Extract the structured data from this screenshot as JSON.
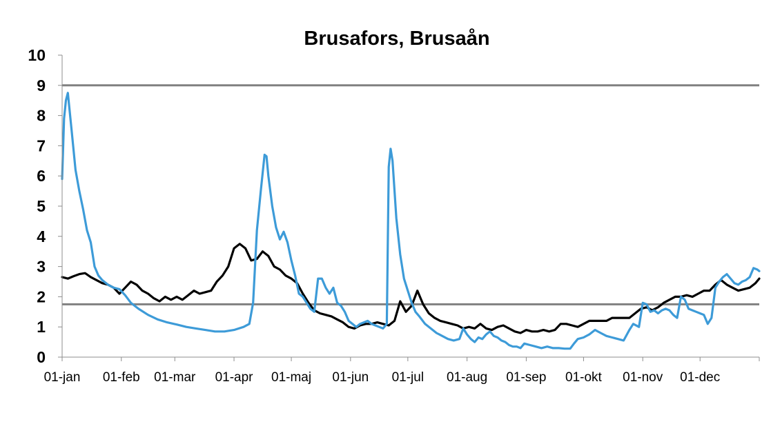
{
  "chart_data": {
    "type": "line",
    "title": "Brusafors, Brusaån",
    "xlabel": "",
    "ylabel": "",
    "ylim": [
      0,
      10
    ],
    "yticks": [
      "0",
      "1",
      "2",
      "3",
      "4",
      "5",
      "6",
      "7",
      "8",
      "9",
      "10"
    ],
    "xticks": [
      {
        "label": "01-jan",
        "day": 0
      },
      {
        "label": "01-feb",
        "day": 31
      },
      {
        "label": "01-mar",
        "day": 59
      },
      {
        "label": "01-apr",
        "day": 90
      },
      {
        "label": "01-maj",
        "day": 120
      },
      {
        "label": "01-jun",
        "day": 151
      },
      {
        "label": "01-jul",
        "day": 181
      },
      {
        "label": "01-aug",
        "day": 212
      },
      {
        "label": "01-sep",
        "day": 243
      },
      {
        "label": "01-okt",
        "day": 273
      },
      {
        "label": "01-nov",
        "day": 304
      },
      {
        "label": "01-dec",
        "day": 334
      }
    ],
    "x_range_days": [
      0,
      365
    ],
    "reference_lines": [
      9.0,
      1.75
    ],
    "grid": false,
    "legend": "none",
    "colors": {
      "black_series": "#000000",
      "blue_series": "#3d9bd8",
      "reference": "#808080"
    },
    "series": [
      {
        "color": "#000000",
        "points": [
          [
            0,
            2.65
          ],
          [
            3,
            2.6
          ],
          [
            6,
            2.68
          ],
          [
            9,
            2.75
          ],
          [
            12,
            2.78
          ],
          [
            15,
            2.65
          ],
          [
            18,
            2.55
          ],
          [
            21,
            2.45
          ],
          [
            24,
            2.4
          ],
          [
            27,
            2.3
          ],
          [
            30,
            2.1
          ],
          [
            33,
            2.3
          ],
          [
            36,
            2.5
          ],
          [
            39,
            2.4
          ],
          [
            42,
            2.2
          ],
          [
            45,
            2.1
          ],
          [
            48,
            1.95
          ],
          [
            51,
            1.85
          ],
          [
            54,
            2.0
          ],
          [
            57,
            1.9
          ],
          [
            60,
            2.0
          ],
          [
            63,
            1.9
          ],
          [
            66,
            2.05
          ],
          [
            69,
            2.2
          ],
          [
            72,
            2.1
          ],
          [
            75,
            2.15
          ],
          [
            78,
            2.2
          ],
          [
            81,
            2.5
          ],
          [
            84,
            2.7
          ],
          [
            87,
            3.0
          ],
          [
            90,
            3.6
          ],
          [
            93,
            3.75
          ],
          [
            96,
            3.6
          ],
          [
            99,
            3.2
          ],
          [
            102,
            3.25
          ],
          [
            105,
            3.5
          ],
          [
            108,
            3.35
          ],
          [
            111,
            3.0
          ],
          [
            114,
            2.9
          ],
          [
            117,
            2.7
          ],
          [
            120,
            2.6
          ],
          [
            123,
            2.45
          ],
          [
            126,
            2.1
          ],
          [
            129,
            1.8
          ],
          [
            132,
            1.55
          ],
          [
            135,
            1.45
          ],
          [
            138,
            1.4
          ],
          [
            141,
            1.35
          ],
          [
            144,
            1.25
          ],
          [
            147,
            1.15
          ],
          [
            150,
            1.0
          ],
          [
            153,
            0.95
          ],
          [
            156,
            1.05
          ],
          [
            159,
            1.1
          ],
          [
            162,
            1.1
          ],
          [
            165,
            1.15
          ],
          [
            168,
            1.1
          ],
          [
            171,
            1.05
          ],
          [
            174,
            1.2
          ],
          [
            177,
            1.85
          ],
          [
            180,
            1.5
          ],
          [
            183,
            1.7
          ],
          [
            186,
            2.2
          ],
          [
            189,
            1.75
          ],
          [
            192,
            1.45
          ],
          [
            195,
            1.3
          ],
          [
            198,
            1.2
          ],
          [
            201,
            1.15
          ],
          [
            204,
            1.1
          ],
          [
            207,
            1.05
          ],
          [
            210,
            0.95
          ],
          [
            213,
            1.0
          ],
          [
            216,
            0.95
          ],
          [
            219,
            1.1
          ],
          [
            222,
            0.95
          ],
          [
            225,
            0.9
          ],
          [
            228,
            1.0
          ],
          [
            231,
            1.05
          ],
          [
            234,
            0.95
          ],
          [
            237,
            0.85
          ],
          [
            240,
            0.8
          ],
          [
            243,
            0.9
          ],
          [
            246,
            0.85
          ],
          [
            249,
            0.85
          ],
          [
            252,
            0.9
          ],
          [
            255,
            0.85
          ],
          [
            258,
            0.9
          ],
          [
            261,
            1.1
          ],
          [
            264,
            1.1
          ],
          [
            267,
            1.05
          ],
          [
            270,
            1.0
          ],
          [
            273,
            1.1
          ],
          [
            276,
            1.2
          ],
          [
            279,
            1.2
          ],
          [
            282,
            1.2
          ],
          [
            285,
            1.2
          ],
          [
            288,
            1.3
          ],
          [
            291,
            1.3
          ],
          [
            294,
            1.3
          ],
          [
            297,
            1.3
          ],
          [
            300,
            1.45
          ],
          [
            303,
            1.6
          ],
          [
            306,
            1.65
          ],
          [
            309,
            1.55
          ],
          [
            312,
            1.65
          ],
          [
            315,
            1.8
          ],
          [
            318,
            1.9
          ],
          [
            321,
            2.0
          ],
          [
            324,
            2.0
          ],
          [
            327,
            2.05
          ],
          [
            330,
            2.0
          ],
          [
            333,
            2.1
          ],
          [
            336,
            2.2
          ],
          [
            339,
            2.2
          ],
          [
            342,
            2.4
          ],
          [
            345,
            2.55
          ],
          [
            348,
            2.4
          ],
          [
            351,
            2.3
          ],
          [
            354,
            2.2
          ],
          [
            357,
            2.25
          ],
          [
            360,
            2.3
          ],
          [
            363,
            2.45
          ],
          [
            365,
            2.6
          ]
        ]
      },
      {
        "color": "#3d9bd8",
        "points": [
          [
            0,
            5.9
          ],
          [
            1,
            7.9
          ],
          [
            2,
            8.5
          ],
          [
            3,
            8.75
          ],
          [
            5,
            7.5
          ],
          [
            7,
            6.2
          ],
          [
            9,
            5.5
          ],
          [
            11,
            4.9
          ],
          [
            13,
            4.2
          ],
          [
            15,
            3.8
          ],
          [
            17,
            3.0
          ],
          [
            19,
            2.7
          ],
          [
            21,
            2.55
          ],
          [
            24,
            2.4
          ],
          [
            27,
            2.3
          ],
          [
            30,
            2.25
          ],
          [
            33,
            2.05
          ],
          [
            36,
            1.8
          ],
          [
            40,
            1.6
          ],
          [
            45,
            1.4
          ],
          [
            50,
            1.25
          ],
          [
            55,
            1.15
          ],
          [
            60,
            1.08
          ],
          [
            65,
            1.0
          ],
          [
            70,
            0.95
          ],
          [
            75,
            0.9
          ],
          [
            80,
            0.85
          ],
          [
            85,
            0.85
          ],
          [
            90,
            0.9
          ],
          [
            95,
            1.0
          ],
          [
            98,
            1.1
          ],
          [
            100,
            1.8
          ],
          [
            102,
            4.2
          ],
          [
            104,
            5.5
          ],
          [
            106,
            6.7
          ],
          [
            107,
            6.65
          ],
          [
            108,
            6.0
          ],
          [
            110,
            5.0
          ],
          [
            112,
            4.3
          ],
          [
            114,
            3.9
          ],
          [
            116,
            4.15
          ],
          [
            118,
            3.8
          ],
          [
            120,
            3.2
          ],
          [
            122,
            2.7
          ],
          [
            124,
            2.1
          ],
          [
            126,
            2.0
          ],
          [
            128,
            1.8
          ],
          [
            130,
            1.6
          ],
          [
            132,
            1.5
          ],
          [
            134,
            2.6
          ],
          [
            136,
            2.6
          ],
          [
            138,
            2.3
          ],
          [
            140,
            2.1
          ],
          [
            142,
            2.3
          ],
          [
            144,
            1.8
          ],
          [
            146,
            1.7
          ],
          [
            148,
            1.5
          ],
          [
            150,
            1.2
          ],
          [
            152,
            1.1
          ],
          [
            154,
            1.0
          ],
          [
            156,
            1.1
          ],
          [
            158,
            1.15
          ],
          [
            160,
            1.2
          ],
          [
            162,
            1.1
          ],
          [
            164,
            1.05
          ],
          [
            166,
            1.0
          ],
          [
            168,
            0.95
          ],
          [
            170,
            1.1
          ],
          [
            171,
            6.3
          ],
          [
            172,
            6.9
          ],
          [
            173,
            6.5
          ],
          [
            175,
            4.6
          ],
          [
            177,
            3.4
          ],
          [
            179,
            2.6
          ],
          [
            181,
            2.2
          ],
          [
            183,
            1.8
          ],
          [
            185,
            1.5
          ],
          [
            187,
            1.35
          ],
          [
            190,
            1.1
          ],
          [
            193,
            0.95
          ],
          [
            196,
            0.8
          ],
          [
            199,
            0.7
          ],
          [
            202,
            0.6
          ],
          [
            205,
            0.55
          ],
          [
            208,
            0.6
          ],
          [
            210,
            0.95
          ],
          [
            212,
            0.75
          ],
          [
            214,
            0.6
          ],
          [
            216,
            0.5
          ],
          [
            218,
            0.65
          ],
          [
            220,
            0.6
          ],
          [
            222,
            0.75
          ],
          [
            224,
            0.85
          ],
          [
            226,
            0.7
          ],
          [
            228,
            0.65
          ],
          [
            230,
            0.55
          ],
          [
            232,
            0.5
          ],
          [
            234,
            0.4
          ],
          [
            236,
            0.35
          ],
          [
            238,
            0.35
          ],
          [
            240,
            0.3
          ],
          [
            242,
            0.45
          ],
          [
            245,
            0.4
          ],
          [
            248,
            0.35
          ],
          [
            251,
            0.3
          ],
          [
            254,
            0.35
          ],
          [
            257,
            0.3
          ],
          [
            260,
            0.3
          ],
          [
            263,
            0.28
          ],
          [
            266,
            0.28
          ],
          [
            268,
            0.45
          ],
          [
            270,
            0.6
          ],
          [
            273,
            0.65
          ],
          [
            276,
            0.75
          ],
          [
            279,
            0.9
          ],
          [
            282,
            0.8
          ],
          [
            285,
            0.7
          ],
          [
            288,
            0.65
          ],
          [
            291,
            0.6
          ],
          [
            294,
            0.55
          ],
          [
            297,
            0.9
          ],
          [
            299,
            1.1
          ],
          [
            302,
            1.0
          ],
          [
            304,
            1.8
          ],
          [
            306,
            1.75
          ],
          [
            308,
            1.5
          ],
          [
            310,
            1.55
          ],
          [
            312,
            1.45
          ],
          [
            314,
            1.55
          ],
          [
            316,
            1.6
          ],
          [
            318,
            1.55
          ],
          [
            320,
            1.4
          ],
          [
            322,
            1.3
          ],
          [
            324,
            2.0
          ],
          [
            326,
            1.9
          ],
          [
            328,
            1.6
          ],
          [
            330,
            1.55
          ],
          [
            332,
            1.5
          ],
          [
            334,
            1.45
          ],
          [
            336,
            1.4
          ],
          [
            338,
            1.1
          ],
          [
            340,
            1.3
          ],
          [
            342,
            2.3
          ],
          [
            344,
            2.5
          ],
          [
            346,
            2.65
          ],
          [
            348,
            2.75
          ],
          [
            350,
            2.6
          ],
          [
            352,
            2.45
          ],
          [
            354,
            2.4
          ],
          [
            356,
            2.5
          ],
          [
            358,
            2.55
          ],
          [
            360,
            2.65
          ],
          [
            362,
            2.95
          ],
          [
            364,
            2.9
          ],
          [
            365,
            2.85
          ]
        ]
      }
    ]
  }
}
